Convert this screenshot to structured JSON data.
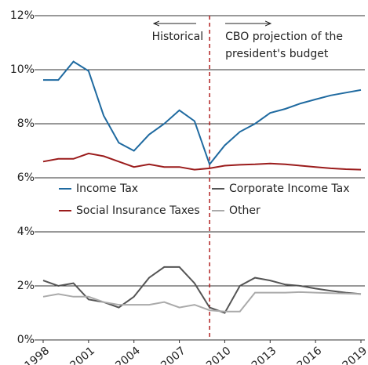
{
  "chart_data": {
    "type": "line",
    "x": [
      1998,
      1999,
      2000,
      2001,
      2002,
      2003,
      2004,
      2005,
      2006,
      2007,
      2008,
      2009,
      2010,
      2011,
      2012,
      2013,
      2014,
      2015,
      2016,
      2017,
      2018,
      2019
    ],
    "series": [
      {
        "name": "Income Tax",
        "color": "#1f6aa0",
        "values": [
          9.62,
          9.62,
          10.3,
          9.95,
          8.3,
          7.3,
          7.0,
          7.6,
          8.0,
          8.5,
          8.1,
          6.5,
          7.2,
          7.7,
          8.0,
          8.4,
          8.55,
          8.75,
          8.9,
          9.05,
          9.15,
          9.25
        ]
      },
      {
        "name": "Corporate Income Tax",
        "color": "#555555",
        "values": [
          2.2,
          2.0,
          2.1,
          1.5,
          1.4,
          1.2,
          1.6,
          2.3,
          2.7,
          2.7,
          2.1,
          1.2,
          1.0,
          2.0,
          2.3,
          2.2,
          2.05,
          2.0,
          1.9,
          1.82,
          1.75,
          1.7
        ]
      },
      {
        "name": "Social Insurance Taxes",
        "color": "#9b1c1c",
        "values": [
          6.6,
          6.7,
          6.7,
          6.9,
          6.8,
          6.6,
          6.4,
          6.5,
          6.4,
          6.4,
          6.3,
          6.35,
          6.45,
          6.48,
          6.5,
          6.53,
          6.5,
          6.45,
          6.4,
          6.35,
          6.32,
          6.3
        ]
      },
      {
        "name": "Other",
        "color": "#aaaaaa",
        "values": [
          1.6,
          1.7,
          1.6,
          1.6,
          1.4,
          1.3,
          1.3,
          1.3,
          1.4,
          1.2,
          1.3,
          1.1,
          1.05,
          1.05,
          1.75,
          1.75,
          1.75,
          1.77,
          1.75,
          1.73,
          1.72,
          1.7
        ]
      }
    ],
    "xlim": [
      1998,
      2019
    ],
    "xticks": [
      1998,
      2001,
      2004,
      2007,
      2010,
      2013,
      2016,
      2019
    ],
    "ylim": [
      0,
      12
    ],
    "yticks": [
      {
        "value": 0,
        "label": "0%"
      },
      {
        "value": 2,
        "label": "2%"
      },
      {
        "value": 4,
        "label": "4%"
      },
      {
        "value": 6,
        "label": "6%"
      },
      {
        "value": 8,
        "label": "8%"
      },
      {
        "value": 10,
        "label": "10%"
      },
      {
        "value": 12,
        "label": "12%"
      }
    ],
    "grid": true,
    "divider": {
      "x": 2009,
      "color": "#b22222",
      "left_label": "Historical",
      "right_label": [
        "CBO projection of the",
        "president's budget"
      ]
    }
  }
}
